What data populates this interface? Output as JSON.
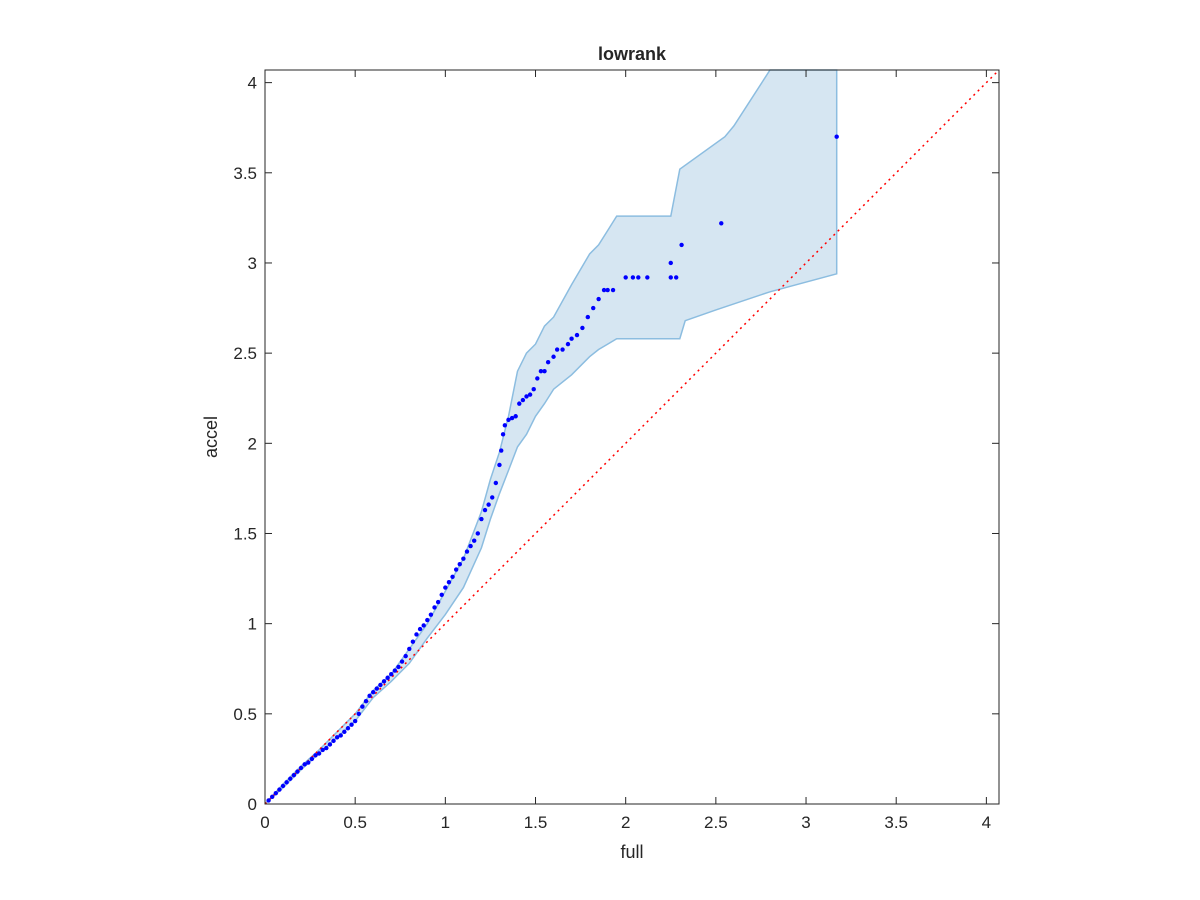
{
  "figure": {
    "background": "#ffffff"
  },
  "chart_data": {
    "type": "scatter",
    "title": "lowrank",
    "xlabel": "full",
    "ylabel": "accel",
    "xlim": [
      0,
      4.07
    ],
    "ylim": [
      0,
      4.07
    ],
    "xticks": [
      0,
      0.5,
      1,
      1.5,
      2,
      2.5,
      3,
      3.5,
      4
    ],
    "yticks": [
      0,
      0.5,
      1,
      1.5,
      2,
      2.5,
      3,
      3.5,
      4
    ],
    "xtick_labels": [
      "0",
      "0.5",
      "1",
      "1.5",
      "2",
      "2.5",
      "3",
      "3.5",
      "4"
    ],
    "ytick_labels": [
      "0",
      "0.5",
      "1",
      "1.5",
      "2",
      "2.5",
      "3",
      "3.5",
      "4"
    ],
    "grid": false,
    "legend": "none",
    "colors": {
      "points": "#0000ff",
      "band_fill": "#d6e6f2",
      "band_edge": "#8cbde0",
      "reference_line": "#ff0000",
      "axes": "#262626"
    },
    "reference_line": {
      "style": "dotted",
      "x": [
        0,
        4.07
      ],
      "y": [
        0,
        4.07
      ]
    },
    "confidence_band": {
      "upper": [
        [
          0,
          0
        ],
        [
          0.1,
          0.11
        ],
        [
          0.2,
          0.21
        ],
        [
          0.3,
          0.3
        ],
        [
          0.4,
          0.4
        ],
        [
          0.5,
          0.5
        ],
        [
          0.6,
          0.63
        ],
        [
          0.7,
          0.72
        ],
        [
          0.8,
          0.86
        ],
        [
          0.9,
          1.0
        ],
        [
          1.0,
          1.18
        ],
        [
          1.1,
          1.36
        ],
        [
          1.2,
          1.62
        ],
        [
          1.25,
          1.8
        ],
        [
          1.3,
          1.95
        ],
        [
          1.35,
          2.15
        ],
        [
          1.4,
          2.4
        ],
        [
          1.45,
          2.5
        ],
        [
          1.5,
          2.55
        ],
        [
          1.55,
          2.65
        ],
        [
          1.6,
          2.7
        ],
        [
          1.7,
          2.88
        ],
        [
          1.8,
          3.05
        ],
        [
          1.85,
          3.1
        ],
        [
          1.9,
          3.18
        ],
        [
          1.95,
          3.26
        ],
        [
          2.0,
          3.26
        ],
        [
          2.25,
          3.26
        ],
        [
          2.3,
          3.52
        ],
        [
          2.55,
          3.7
        ],
        [
          2.6,
          3.76
        ],
        [
          2.8,
          4.07
        ],
        [
          3.17,
          4.07
        ]
      ],
      "lower": [
        [
          0,
          0
        ],
        [
          0.1,
          0.09
        ],
        [
          0.2,
          0.19
        ],
        [
          0.3,
          0.28
        ],
        [
          0.4,
          0.37
        ],
        [
          0.5,
          0.46
        ],
        [
          0.6,
          0.59
        ],
        [
          0.7,
          0.68
        ],
        [
          0.8,
          0.78
        ],
        [
          0.9,
          0.92
        ],
        [
          1.0,
          1.05
        ],
        [
          1.1,
          1.2
        ],
        [
          1.2,
          1.42
        ],
        [
          1.25,
          1.58
        ],
        [
          1.3,
          1.72
        ],
        [
          1.35,
          1.85
        ],
        [
          1.4,
          1.98
        ],
        [
          1.45,
          2.05
        ],
        [
          1.5,
          2.15
        ],
        [
          1.55,
          2.22
        ],
        [
          1.6,
          2.3
        ],
        [
          1.7,
          2.38
        ],
        [
          1.8,
          2.48
        ],
        [
          1.85,
          2.52
        ],
        [
          1.9,
          2.55
        ],
        [
          1.95,
          2.58
        ],
        [
          2.0,
          2.58
        ],
        [
          2.3,
          2.58
        ],
        [
          2.33,
          2.68
        ],
        [
          2.5,
          2.74
        ],
        [
          2.8,
          2.84
        ],
        [
          3.17,
          2.94
        ]
      ]
    },
    "series": [
      {
        "x": [
          0.02,
          0.04,
          0.06,
          0.08,
          0.1,
          0.12,
          0.14,
          0.16,
          0.18,
          0.2,
          0.22,
          0.24,
          0.26,
          0.28,
          0.3,
          0.32,
          0.34,
          0.36,
          0.38,
          0.4,
          0.42,
          0.44,
          0.46,
          0.48,
          0.5,
          0.52,
          0.54,
          0.56,
          0.58,
          0.6,
          0.62,
          0.64,
          0.66,
          0.68,
          0.7,
          0.72,
          0.74,
          0.76,
          0.78,
          0.8,
          0.82,
          0.84,
          0.86,
          0.88,
          0.9,
          0.92,
          0.94,
          0.96,
          0.98,
          1.0,
          1.02,
          1.04,
          1.06,
          1.08,
          1.1,
          1.12,
          1.14,
          1.16,
          1.18,
          1.2,
          1.22,
          1.24,
          1.26,
          1.28,
          1.3,
          1.31,
          1.32,
          1.33,
          1.35,
          1.37,
          1.39,
          1.41,
          1.43,
          1.45,
          1.47,
          1.49,
          1.51,
          1.53,
          1.55,
          1.57,
          1.6,
          1.62,
          1.65,
          1.68,
          1.7,
          1.73,
          1.76,
          1.79,
          1.82,
          1.85,
          1.88,
          1.9,
          1.93,
          2.0,
          2.04,
          2.07,
          2.12,
          2.25,
          2.28,
          2.25,
          2.31,
          2.53,
          3.17
        ],
        "y": [
          0.02,
          0.04,
          0.06,
          0.08,
          0.1,
          0.12,
          0.14,
          0.16,
          0.18,
          0.2,
          0.22,
          0.23,
          0.25,
          0.27,
          0.28,
          0.3,
          0.31,
          0.33,
          0.35,
          0.37,
          0.38,
          0.4,
          0.42,
          0.44,
          0.46,
          0.5,
          0.54,
          0.57,
          0.6,
          0.62,
          0.64,
          0.66,
          0.68,
          0.7,
          0.72,
          0.74,
          0.76,
          0.79,
          0.82,
          0.86,
          0.9,
          0.94,
          0.97,
          0.99,
          1.02,
          1.05,
          1.09,
          1.12,
          1.16,
          1.2,
          1.23,
          1.26,
          1.3,
          1.33,
          1.36,
          1.4,
          1.43,
          1.46,
          1.5,
          1.58,
          1.63,
          1.66,
          1.7,
          1.78,
          1.88,
          1.96,
          2.05,
          2.1,
          2.13,
          2.14,
          2.15,
          2.22,
          2.24,
          2.26,
          2.27,
          2.3,
          2.36,
          2.4,
          2.4,
          2.45,
          2.48,
          2.52,
          2.52,
          2.55,
          2.58,
          2.6,
          2.64,
          2.7,
          2.75,
          2.8,
          2.85,
          2.85,
          2.85,
          2.92,
          2.92,
          2.92,
          2.92,
          2.92,
          2.92,
          3.0,
          3.1,
          3.22,
          3.7
        ]
      }
    ]
  }
}
